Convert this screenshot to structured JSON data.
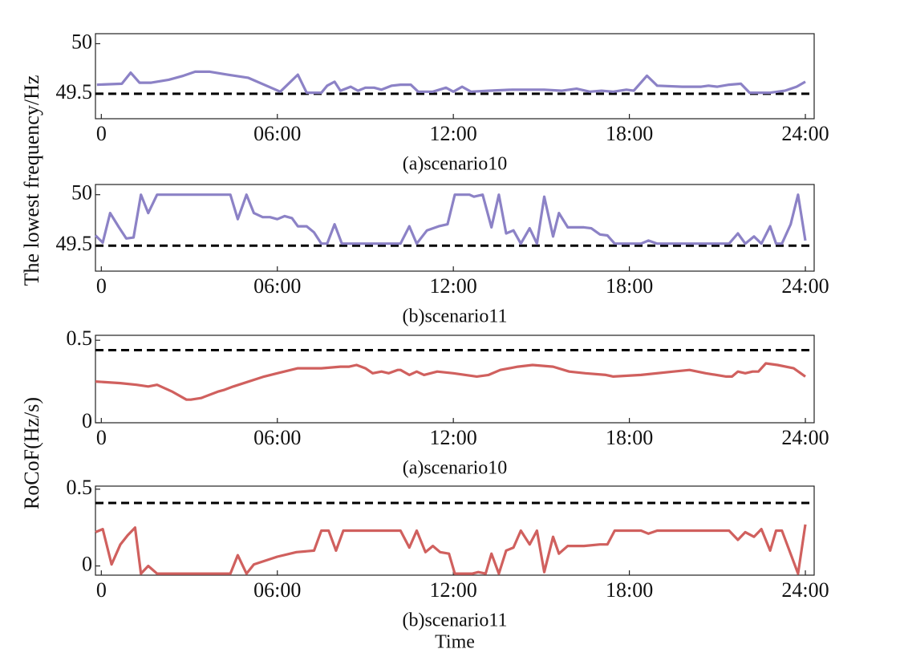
{
  "chart_data": [
    {
      "type": "line",
      "subtitle": "(a)scenario10",
      "ylabel": "The lowest frequency/Hz",
      "color": "#8c82c6",
      "threshold": 49.5,
      "xlim": [
        -0.2,
        24.3
      ],
      "xticks": [
        0,
        {
          "value": 6,
          "label": "06:00"
        },
        {
          "value": 12,
          "label": "12:00"
        },
        {
          "value": 18,
          "label": "18:00"
        },
        {
          "value": 24,
          "label": "24:00"
        }
      ],
      "ylim": [
        49.25,
        50.1
      ],
      "yticks": [
        49.5,
        50
      ],
      "x": [
        -0.15,
        0.7,
        1.0,
        1.3,
        1.7,
        2.3,
        2.8,
        3.2,
        3.7,
        4.3,
        5.0,
        6.1,
        6.7,
        7.0,
        7.5,
        7.7,
        7.95,
        8.15,
        8.5,
        8.75,
        9.0,
        9.3,
        9.55,
        9.9,
        10.2,
        10.55,
        10.8,
        11.3,
        11.75,
        12.0,
        12.3,
        12.6,
        13.2,
        14.0,
        15.1,
        15.7,
        16.2,
        16.65,
        17.05,
        17.45,
        17.9,
        18.15,
        18.6,
        18.95,
        19.8,
        20.45,
        20.7,
        21.0,
        21.4,
        21.8,
        22.1,
        22.8,
        23.3,
        23.7,
        24.0
      ],
      "values": [
        49.59,
        49.6,
        49.71,
        49.61,
        49.61,
        49.64,
        49.68,
        49.72,
        49.72,
        49.69,
        49.66,
        49.52,
        49.69,
        49.51,
        49.51,
        49.58,
        49.62,
        49.53,
        49.57,
        49.53,
        49.56,
        49.56,
        49.54,
        49.58,
        49.59,
        49.59,
        49.52,
        49.52,
        49.56,
        49.52,
        49.57,
        49.52,
        49.53,
        49.54,
        49.54,
        49.53,
        49.55,
        49.52,
        49.53,
        49.52,
        49.54,
        49.53,
        49.68,
        49.58,
        49.57,
        49.57,
        49.58,
        49.57,
        49.59,
        49.6,
        49.51,
        49.51,
        49.53,
        49.57,
        49.62
      ]
    },
    {
      "type": "line",
      "subtitle": "(b)scenario11",
      "color": "#8c82c6",
      "threshold": 49.5,
      "xlim": [
        -0.2,
        24.3
      ],
      "xticks": [
        0,
        {
          "value": 6,
          "label": "06:00"
        },
        {
          "value": 12,
          "label": "12:00"
        },
        {
          "value": 18,
          "label": "18:00"
        },
        {
          "value": 24,
          "label": "24:00"
        }
      ],
      "ylim": [
        49.25,
        50.1
      ],
      "yticks": [
        49.5,
        50
      ],
      "x": [
        -0.2,
        0.05,
        0.3,
        0.6,
        0.85,
        1.1,
        1.35,
        1.6,
        1.9,
        4.4,
        4.65,
        4.95,
        5.2,
        5.5,
        5.75,
        6.0,
        6.25,
        6.5,
        6.7,
        7.0,
        7.25,
        7.5,
        7.7,
        7.95,
        8.2,
        10.2,
        10.5,
        10.75,
        11.1,
        11.5,
        11.8,
        12.05,
        12.55,
        12.7,
        13.0,
        13.3,
        13.55,
        13.8,
        14.05,
        14.3,
        14.6,
        14.85,
        15.1,
        15.4,
        15.6,
        15.9,
        16.45,
        16.7,
        17.0,
        17.25,
        17.5,
        18.4,
        18.65,
        18.95,
        21.4,
        21.7,
        21.95,
        22.25,
        22.5,
        22.8,
        23.0,
        23.2,
        23.5,
        23.75,
        24.0
      ],
      "values": [
        49.6,
        49.53,
        49.82,
        49.68,
        49.57,
        49.58,
        50,
        49.82,
        50,
        50,
        49.76,
        50,
        49.82,
        49.78,
        49.78,
        49.76,
        49.79,
        49.77,
        49.69,
        49.69,
        49.63,
        49.52,
        49.52,
        49.71,
        49.52,
        49.52,
        49.69,
        49.52,
        49.65,
        49.69,
        49.71,
        50,
        50,
        49.98,
        50,
        49.68,
        50,
        49.62,
        49.65,
        49.52,
        49.67,
        49.52,
        49.98,
        49.59,
        49.82,
        49.68,
        49.68,
        49.67,
        49.61,
        49.6,
        49.52,
        49.52,
        49.55,
        49.52,
        49.52,
        49.62,
        49.52,
        49.59,
        49.52,
        49.69,
        49.52,
        49.52,
        49.71,
        50,
        49.55
      ]
    },
    {
      "type": "line",
      "subtitle": "(a)scenario10",
      "ylabel": "RoCoF(Hz/s)",
      "color": "#d0605e",
      "threshold": 0.44,
      "xlim": [
        -0.2,
        24.3
      ],
      "xticks": [
        0,
        {
          "value": 6,
          "label": "06:00"
        },
        {
          "value": 12,
          "label": "12:00"
        },
        {
          "value": 18,
          "label": "18:00"
        },
        {
          "value": 24,
          "label": "24:00"
        }
      ],
      "ylim": [
        0,
        0.53
      ],
      "yticks": [
        0,
        0.5
      ],
      "x": [
        -0.2,
        0.65,
        1.2,
        1.6,
        1.9,
        2.4,
        2.9,
        3.05,
        3.4,
        4.0,
        4.2,
        4.5,
        5.55,
        6.0,
        6.7,
        7.05,
        7.25,
        7.5,
        8.15,
        8.45,
        8.7,
        9.0,
        9.25,
        9.55,
        9.8,
        10.1,
        10.2,
        10.5,
        10.75,
        11.0,
        11.45,
        12.0,
        12.8,
        13.2,
        13.6,
        14.2,
        14.7,
        15.4,
        15.95,
        16.5,
        17.2,
        17.45,
        18.4,
        19.5,
        20.05,
        20.6,
        21.3,
        21.5,
        21.7,
        21.95,
        22.2,
        22.4,
        22.65,
        23.05,
        23.6,
        24.0
      ],
      "values": [
        0.25,
        0.24,
        0.23,
        0.22,
        0.23,
        0.19,
        0.14,
        0.14,
        0.15,
        0.19,
        0.2,
        0.22,
        0.28,
        0.3,
        0.33,
        0.33,
        0.33,
        0.33,
        0.34,
        0.34,
        0.35,
        0.33,
        0.3,
        0.31,
        0.3,
        0.32,
        0.32,
        0.29,
        0.31,
        0.29,
        0.31,
        0.3,
        0.28,
        0.29,
        0.32,
        0.34,
        0.35,
        0.34,
        0.31,
        0.3,
        0.29,
        0.28,
        0.29,
        0.31,
        0.32,
        0.3,
        0.28,
        0.28,
        0.31,
        0.3,
        0.31,
        0.31,
        0.36,
        0.35,
        0.33,
        0.28
      ]
    },
    {
      "type": "line",
      "subtitle": "(b)scenario11",
      "xlabel": "Time",
      "color": "#d0605e",
      "threshold": 0.41,
      "xlim": [
        -0.2,
        24.3
      ],
      "xticks": [
        0,
        {
          "value": 6,
          "label": "06:00"
        },
        {
          "value": 12,
          "label": "12:00"
        },
        {
          "value": 18,
          "label": "18:00"
        },
        {
          "value": 24,
          "label": "24:00"
        }
      ],
      "ylim": [
        -0.06,
        0.52
      ],
      "yticks": [
        0,
        0.5
      ],
      "x": [
        -0.2,
        0.05,
        0.35,
        0.65,
        0.9,
        1.15,
        1.35,
        1.6,
        1.9,
        4.4,
        4.65,
        4.95,
        5.2,
        6.0,
        6.65,
        7.25,
        7.5,
        7.75,
        8.0,
        8.25,
        10.2,
        10.5,
        10.75,
        11.05,
        11.3,
        11.55,
        11.85,
        12.05,
        12.65,
        12.85,
        13.1,
        13.3,
        13.55,
        13.8,
        14.05,
        14.3,
        14.6,
        14.85,
        15.1,
        15.4,
        15.6,
        15.9,
        16.45,
        17.0,
        17.25,
        17.5,
        18.4,
        18.65,
        18.95,
        21.4,
        21.7,
        21.95,
        22.25,
        22.5,
        22.8,
        23.0,
        23.2,
        23.75,
        24.0
      ],
      "values": [
        0.22,
        0.24,
        0.01,
        0.14,
        0.2,
        0.25,
        -0.05,
        0,
        -0.05,
        -0.05,
        0.07,
        -0.05,
        0.01,
        0.06,
        0.09,
        0.1,
        0.23,
        0.23,
        0.1,
        0.23,
        0.23,
        0.12,
        0.23,
        0.09,
        0.13,
        0.09,
        0.08,
        -0.05,
        -0.05,
        -0.04,
        -0.05,
        0.08,
        -0.05,
        0.1,
        0.12,
        0.23,
        0.14,
        0.23,
        -0.04,
        0.19,
        0.08,
        0.13,
        0.13,
        0.14,
        0.14,
        0.23,
        0.23,
        0.21,
        0.23,
        0.23,
        0.17,
        0.22,
        0.19,
        0.24,
        0.1,
        0.23,
        0.23,
        -0.05,
        0.27
      ]
    }
  ]
}
